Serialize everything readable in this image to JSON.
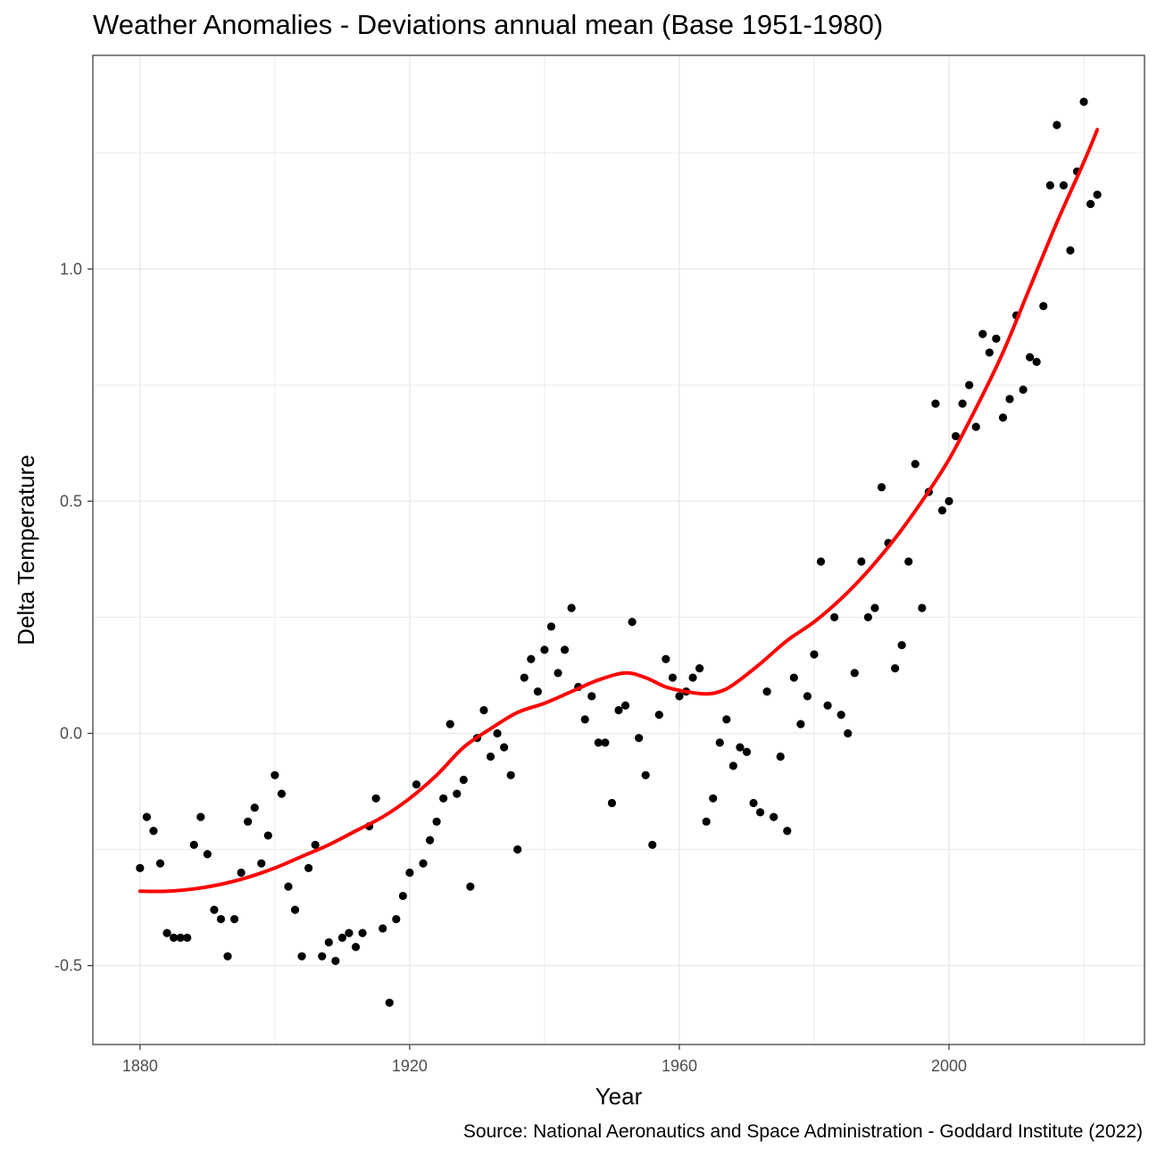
{
  "chart_data": {
    "type": "scatter",
    "title": "Weather Anomalies - Deviations annual mean (Base 1951-1980)",
    "caption": "Source: National Aeronautics and Space Administration - Goddard Institute (2022)",
    "xlabel": "Year",
    "ylabel": "Delta Temperature",
    "xlim": [
      1873,
      2029
    ],
    "ylim": [
      -0.67,
      1.46
    ],
    "x_ticks": [
      1880,
      1920,
      1960,
      2000
    ],
    "x_tick_labels": [
      "1880",
      "1920",
      "1960",
      "2000"
    ],
    "y_ticks": [
      -0.5,
      0.0,
      0.5,
      1.0
    ],
    "y_tick_labels": [
      "-0.5",
      "0.0",
      "0.5",
      "1.0"
    ],
    "grid": true,
    "legend": "none",
    "colors": {
      "points": "#000000",
      "trend": "#ff0000",
      "grid": "#ebebeb",
      "border": "#333333"
    },
    "series": [
      {
        "type": "scatter",
        "x": [
          1880,
          1881,
          1882,
          1883,
          1884,
          1885,
          1886,
          1887,
          1888,
          1889,
          1890,
          1891,
          1892,
          1893,
          1894,
          1895,
          1896,
          1897,
          1898,
          1899,
          1900,
          1901,
          1902,
          1903,
          1904,
          1905,
          1906,
          1907,
          1908,
          1909,
          1910,
          1911,
          1912,
          1913,
          1914,
          1915,
          1916,
          1917,
          1918,
          1919,
          1920,
          1921,
          1922,
          1923,
          1924,
          1925,
          1926,
          1927,
          1928,
          1929,
          1930,
          1931,
          1932,
          1933,
          1934,
          1935,
          1936,
          1937,
          1938,
          1939,
          1940,
          1941,
          1942,
          1943,
          1944,
          1945,
          1946,
          1947,
          1948,
          1949,
          1950,
          1951,
          1952,
          1953,
          1954,
          1955,
          1956,
          1957,
          1958,
          1959,
          1960,
          1961,
          1962,
          1963,
          1964,
          1965,
          1966,
          1967,
          1968,
          1969,
          1970,
          1971,
          1972,
          1973,
          1974,
          1975,
          1976,
          1977,
          1978,
          1979,
          1980,
          1981,
          1982,
          1983,
          1984,
          1985,
          1986,
          1987,
          1988,
          1989,
          1990,
          1991,
          1992,
          1993,
          1994,
          1995,
          1996,
          1997,
          1998,
          1999,
          2000,
          2001,
          2002,
          2003,
          2004,
          2005,
          2006,
          2007,
          2008,
          2009,
          2010,
          2011,
          2012,
          2013,
          2014,
          2015,
          2016,
          2017,
          2018,
          2019,
          2020,
          2021,
          2022
        ],
        "y": [
          -0.29,
          -0.18,
          -0.21,
          -0.28,
          -0.43,
          -0.44,
          -0.44,
          -0.44,
          -0.24,
          -0.18,
          -0.26,
          -0.38,
          -0.4,
          -0.48,
          -0.4,
          -0.3,
          -0.19,
          -0.16,
          -0.28,
          -0.22,
          -0.09,
          -0.13,
          -0.33,
          -0.38,
          -0.48,
          -0.29,
          -0.24,
          -0.48,
          -0.45,
          -0.49,
          -0.44,
          -0.43,
          -0.46,
          -0.43,
          -0.2,
          -0.14,
          -0.42,
          -0.58,
          -0.4,
          -0.35,
          -0.3,
          -0.11,
          -0.28,
          -0.23,
          -0.19,
          -0.14,
          0.02,
          -0.13,
          -0.1,
          -0.33,
          -0.01,
          0.05,
          -0.05,
          0.0,
          -0.03,
          -0.09,
          -0.25,
          0.12,
          0.16,
          0.09,
          0.18,
          0.23,
          0.13,
          0.18,
          0.27,
          0.1,
          0.03,
          0.08,
          -0.02,
          -0.02,
          -0.15,
          0.05,
          0.06,
          0.24,
          -0.01,
          -0.09,
          -0.24,
          0.04,
          0.16,
          0.12,
          0.08,
          0.09,
          0.12,
          0.14,
          -0.19,
          -0.14,
          -0.02,
          0.03,
          -0.07,
          -0.03,
          -0.04,
          -0.15,
          -0.17,
          0.09,
          -0.18,
          -0.05,
          -0.21,
          0.12,
          0.02,
          0.08,
          0.17,
          0.37,
          0.06,
          0.25,
          0.04,
          0.0,
          0.13,
          0.37,
          0.25,
          0.27,
          0.53,
          0.41,
          0.14,
          0.19,
          0.37,
          0.58,
          0.27,
          0.52,
          0.71,
          0.48,
          0.5,
          0.64,
          0.71,
          0.75,
          0.66,
          0.86,
          0.82,
          0.85,
          0.68,
          0.72,
          0.9,
          0.74,
          0.81,
          0.8,
          0.92,
          1.18,
          1.31,
          1.18,
          1.04,
          1.21,
          1.36,
          1.14,
          1.16
        ]
      },
      {
        "type": "line",
        "smooth": "loess",
        "x": [
          1880,
          1884,
          1888,
          1892,
          1896,
          1900,
          1904,
          1908,
          1912,
          1916,
          1920,
          1924,
          1928,
          1932,
          1936,
          1940,
          1944,
          1948,
          1952,
          1955,
          1958,
          1961,
          1964,
          1966,
          1968,
          1972,
          1976,
          1980,
          1984,
          1988,
          1992,
          1996,
          2000,
          2004,
          2008,
          2012,
          2016,
          2020,
          2022
        ],
        "y": [
          -0.34,
          -0.34,
          -0.335,
          -0.325,
          -0.31,
          -0.29,
          -0.265,
          -0.24,
          -0.21,
          -0.18,
          -0.14,
          -0.09,
          -0.03,
          0.01,
          0.045,
          0.065,
          0.09,
          0.115,
          0.13,
          0.12,
          0.1,
          0.09,
          0.085,
          0.09,
          0.105,
          0.15,
          0.2,
          0.24,
          0.29,
          0.35,
          0.42,
          0.5,
          0.59,
          0.7,
          0.82,
          0.96,
          1.1,
          1.23,
          1.3
        ]
      }
    ]
  }
}
